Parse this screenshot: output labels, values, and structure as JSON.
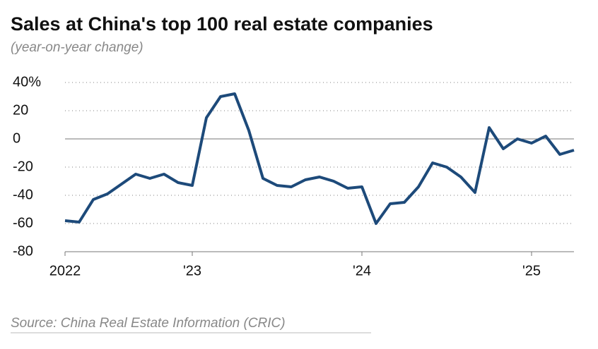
{
  "chart_data": {
    "type": "line",
    "title": "Sales at China's top 100 real estate companies",
    "subtitle": "(year-on-year change)",
    "source": "Source: China Real Estate Information (CRIC)",
    "categories": [
      "2022",
      null,
      null,
      null,
      null,
      null,
      null,
      null,
      null,
      "'23",
      null,
      null,
      null,
      null,
      null,
      null,
      null,
      null,
      null,
      null,
      null,
      "'24",
      null,
      null,
      null,
      null,
      null,
      null,
      null,
      null,
      null,
      null,
      null,
      "'25",
      null,
      null,
      null
    ],
    "series": [
      {
        "name": "Sales",
        "color": "#1d4a7a",
        "values": [
          -58,
          -59,
          -43,
          -39,
          -32,
          -25,
          -28,
          -25,
          -31,
          -33,
          15,
          30,
          32,
          6,
          -28,
          -33,
          -34,
          -29,
          -27,
          -30,
          -35,
          -34,
          -60,
          -46,
          -45,
          -34,
          -17,
          -20,
          -27,
          -38,
          8,
          -7,
          0,
          -3,
          2,
          -11,
          -8
        ]
      }
    ],
    "ylim": [
      -80,
      40
    ],
    "yticks": [
      -80,
      -60,
      -40,
      -20,
      0,
      20,
      {
        "value": 40,
        "label": "40%"
      }
    ],
    "grid": true
  }
}
